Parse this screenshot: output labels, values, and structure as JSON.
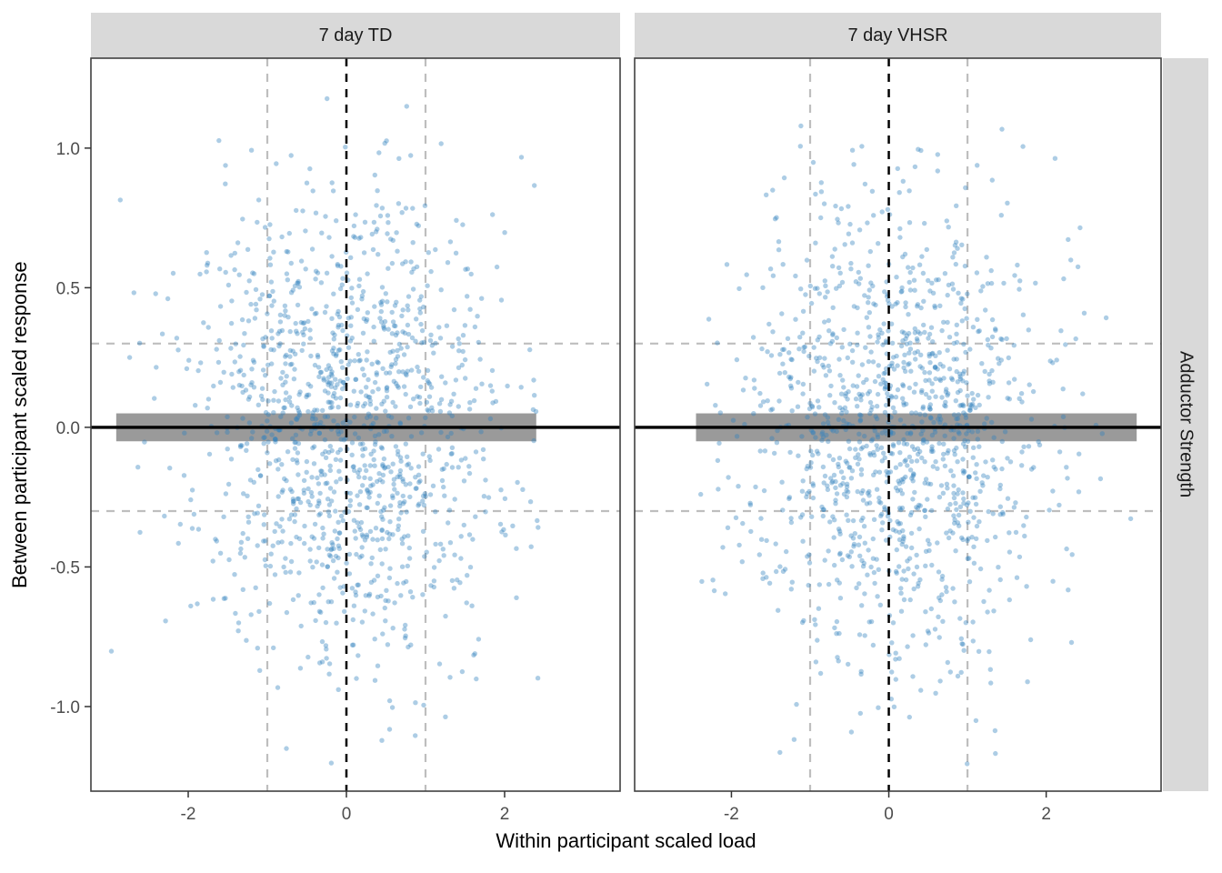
{
  "page": {
    "background": "#FFFFFF"
  },
  "chart_data": {
    "type": "scatter",
    "title": "",
    "xlabel": "Within participant scaled load",
    "ylabel": "Between participant scaled response",
    "facet_row_label": "Adductor Strength",
    "legend": "none",
    "grid": "off",
    "x_domain": [
      -3.23,
      3.46
    ],
    "y_domain": [
      -1.303,
      1.322
    ],
    "x_ticks": {
      "values": [
        -2,
        0,
        2
      ],
      "labels": [
        "-2",
        "0",
        "2"
      ]
    },
    "y_ticks": {
      "values": [
        1.0,
        0.5,
        0.0,
        -0.5,
        -1.0
      ],
      "labels": [
        "1.0",
        "0.5",
        "0.0",
        "-0.5",
        "-1.0"
      ]
    },
    "panels": [
      {
        "label": "7 day TD",
        "n_points": 1250,
        "x_mean": 0,
        "x_sd": 1.0,
        "x_clip": [
          -3.05,
          2.45
        ],
        "y_mean": 0,
        "y_sd": 0.42,
        "y_clip": [
          -1.27,
          1.19
        ],
        "seed": 1337,
        "band_x": [
          -2.91,
          2.4
        ]
      },
      {
        "label": "7 day VHSR",
        "n_points": 1250,
        "x_mean": 0.1,
        "x_sd": 1.0,
        "x_clip": [
          -2.45,
          3.17
        ],
        "y_mean": 0,
        "y_sd": 0.42,
        "y_clip": [
          -1.27,
          1.19
        ],
        "seed": 7121,
        "band_x": [
          -2.45,
          3.15
        ]
      }
    ],
    "band": {
      "y_from": -0.05,
      "y_to": 0.05,
      "color": "#9A9A9A",
      "spans_data_x_range": true
    },
    "reference_lines": [
      {
        "type": "hline",
        "y": 0.3,
        "style": "dashed",
        "color": "#BEBEBE",
        "width": 2.2,
        "layer": "back"
      },
      {
        "type": "hline",
        "y": -0.3,
        "style": "dashed",
        "color": "#BEBEBE",
        "width": 2.2,
        "layer": "back"
      },
      {
        "type": "vline",
        "x": -1,
        "style": "dashed",
        "color": "#BEBEBE",
        "width": 2.2,
        "layer": "back"
      },
      {
        "type": "vline",
        "x": 1,
        "style": "dashed",
        "color": "#BEBEBE",
        "width": 2.2,
        "layer": "back"
      },
      {
        "type": "vline",
        "x": 0,
        "style": "dashed",
        "color": "#000000",
        "width": 2.5,
        "layer": "front"
      },
      {
        "type": "hline",
        "y": 0,
        "style": "solid",
        "color": "#000000",
        "width": 3.4,
        "layer": "front"
      }
    ],
    "point_style": {
      "fill": "#3182BD",
      "opacity": 0.4,
      "radius": 2.7
    }
  },
  "theme": {
    "strip_bg": "#D9D9D9",
    "strip_text_color": "#1A1A1A",
    "panel_bg": "#FFFFFF",
    "panel_border": "#404040",
    "tick_color": "#333333",
    "tick_label_color": "#4D4D4D"
  }
}
